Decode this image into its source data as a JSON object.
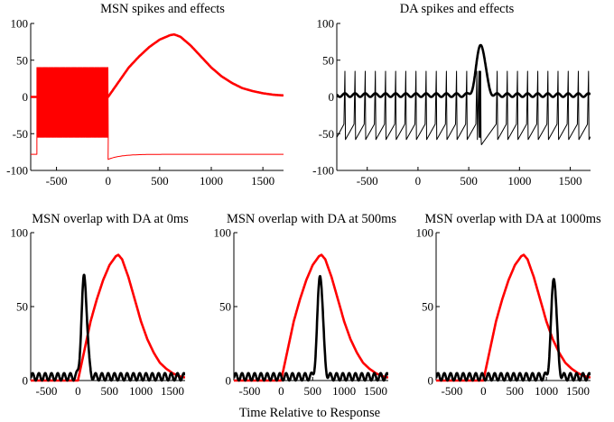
{
  "figure": {
    "xlabel": "Time Relative to Response",
    "colors": {
      "msn": "#ff0000",
      "da": "#000000"
    }
  },
  "chart_data": [
    {
      "id": "msn",
      "type": "line",
      "title": "MSN spikes and effects",
      "xlim": [
        -750,
        1700
      ],
      "ylim": [
        -100,
        100
      ],
      "xticks": [
        -500,
        0,
        500,
        1000,
        1500
      ],
      "yticks": [
        -100,
        -50,
        0,
        50,
        100
      ],
      "series": [
        {
          "name": "MSN spike train",
          "color": "#ff0000",
          "kind": "spike_train",
          "baseline": -78,
          "depolarized": -55,
          "peak": 40,
          "burst_start": -690,
          "burst_end": 0,
          "after_dip": -85
        },
        {
          "name": "MSN effect",
          "color": "#ff0000",
          "kind": "curve",
          "points": [
            [
              -750,
              0
            ],
            [
              0,
              0
            ],
            [
              100,
              20
            ],
            [
              200,
              40
            ],
            [
              300,
              55
            ],
            [
              400,
              68
            ],
            [
              500,
              78
            ],
            [
              600,
              84
            ],
            [
              640,
              85
            ],
            [
              700,
              82
            ],
            [
              800,
              70
            ],
            [
              900,
              55
            ],
            [
              1000,
              40
            ],
            [
              1100,
              28
            ],
            [
              1200,
              19
            ],
            [
              1300,
              12
            ],
            [
              1400,
              8
            ],
            [
              1500,
              5
            ],
            [
              1600,
              3
            ],
            [
              1700,
              2
            ]
          ]
        }
      ]
    },
    {
      "id": "da",
      "type": "line",
      "title": "DA spikes and effects",
      "xlim": [
        -800,
        1700
      ],
      "ylim": [
        -100,
        100
      ],
      "xticks": [
        -500,
        0,
        500,
        1000,
        1500
      ],
      "yticks": [
        -100,
        -50,
        0,
        50,
        100
      ],
      "series": [
        {
          "name": "DA spike train",
          "color": "#000000",
          "kind": "spike_train",
          "baseline": -55,
          "peak": 35,
          "isi": 100,
          "burst_start": 520,
          "burst_end": 620
        },
        {
          "name": "DA effect",
          "color": "#000000",
          "kind": "curve",
          "baseline": 0,
          "ripple": 5,
          "peak": 75,
          "peak_time": 620
        }
      ]
    },
    {
      "id": "overlap0",
      "type": "line",
      "title": "MSN overlap with DA at 0ms",
      "xlim": [
        -750,
        1700
      ],
      "ylim": [
        0,
        100
      ],
      "xticks": [
        -500,
        0,
        500,
        1000,
        1500
      ],
      "yticks": [
        0,
        50,
        100
      ],
      "series": [
        {
          "name": "MSN effect",
          "color": "#ff0000",
          "kind": "curve",
          "points": [
            [
              -750,
              0
            ],
            [
              0,
              0
            ],
            [
              100,
              20
            ],
            [
              200,
              40
            ],
            [
              300,
              55
            ],
            [
              400,
              68
            ],
            [
              500,
              78
            ],
            [
              600,
              84
            ],
            [
              640,
              85
            ],
            [
              700,
              82
            ],
            [
              800,
              70
            ],
            [
              900,
              55
            ],
            [
              1000,
              40
            ],
            [
              1100,
              28
            ],
            [
              1200,
              19
            ],
            [
              1300,
              12
            ],
            [
              1400,
              8
            ],
            [
              1500,
              5
            ],
            [
              1600,
              3
            ],
            [
              1700,
              2
            ]
          ]
        },
        {
          "name": "DA effect",
          "color": "#000000",
          "kind": "curve",
          "baseline": 0,
          "ripple": 5,
          "peak": 73,
          "peak_time": 100
        }
      ]
    },
    {
      "id": "overlap500",
      "type": "line",
      "title": "MSN overlap with DA at 500ms",
      "xlim": [
        -750,
        1700
      ],
      "ylim": [
        0,
        100
      ],
      "xticks": [
        -500,
        0,
        500,
        1000,
        1500
      ],
      "yticks": [
        0,
        50,
        100
      ],
      "series": [
        {
          "name": "MSN effect",
          "color": "#ff0000",
          "kind": "curve",
          "points": [
            [
              -750,
              0
            ],
            [
              0,
              0
            ],
            [
              100,
              20
            ],
            [
              200,
              40
            ],
            [
              300,
              55
            ],
            [
              400,
              68
            ],
            [
              500,
              78
            ],
            [
              600,
              84
            ],
            [
              640,
              85
            ],
            [
              700,
              82
            ],
            [
              800,
              70
            ],
            [
              900,
              55
            ],
            [
              1000,
              40
            ],
            [
              1100,
              28
            ],
            [
              1200,
              19
            ],
            [
              1300,
              12
            ],
            [
              1400,
              8
            ],
            [
              1500,
              5
            ],
            [
              1600,
              3
            ],
            [
              1700,
              2
            ]
          ]
        },
        {
          "name": "DA effect",
          "color": "#000000",
          "kind": "curve",
          "baseline": 0,
          "ripple": 5,
          "peak": 75,
          "peak_time": 620
        }
      ]
    },
    {
      "id": "overlap1000",
      "type": "line",
      "title": "MSN overlap with DA at 1000ms",
      "xlim": [
        -750,
        1700
      ],
      "ylim": [
        0,
        100
      ],
      "xticks": [
        -500,
        0,
        500,
        1000,
        1500
      ],
      "yticks": [
        0,
        50,
        100
      ],
      "series": [
        {
          "name": "MSN effect",
          "color": "#ff0000",
          "kind": "curve",
          "points": [
            [
              -750,
              0
            ],
            [
              0,
              0
            ],
            [
              100,
              20
            ],
            [
              200,
              40
            ],
            [
              300,
              55
            ],
            [
              400,
              68
            ],
            [
              500,
              78
            ],
            [
              600,
              84
            ],
            [
              640,
              85
            ],
            [
              700,
              82
            ],
            [
              800,
              70
            ],
            [
              900,
              55
            ],
            [
              1000,
              40
            ],
            [
              1100,
              28
            ],
            [
              1200,
              19
            ],
            [
              1300,
              12
            ],
            [
              1400,
              8
            ],
            [
              1500,
              5
            ],
            [
              1600,
              3
            ],
            [
              1700,
              2
            ]
          ]
        },
        {
          "name": "DA effect",
          "color": "#000000",
          "kind": "curve",
          "baseline": 0,
          "ripple": 5,
          "peak": 73,
          "peak_time": 1120
        }
      ]
    }
  ]
}
